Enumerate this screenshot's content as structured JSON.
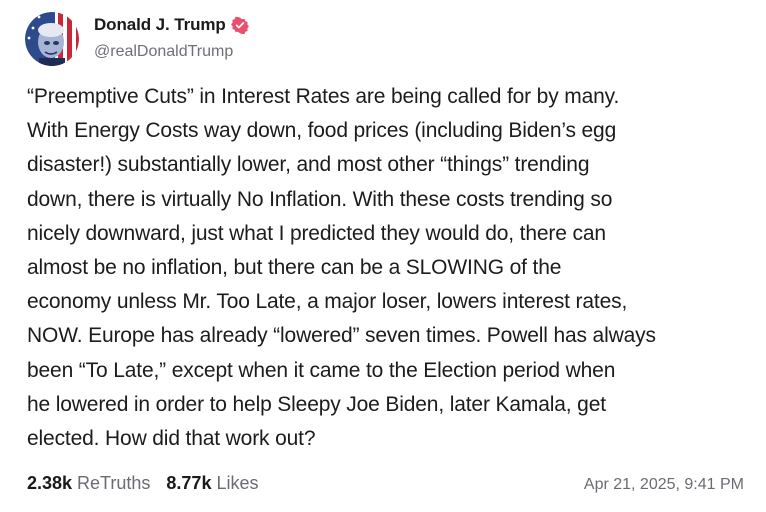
{
  "author": {
    "display_name": "Donald J. Trump",
    "handle": "@realDonaldTrump",
    "verified_icon": "verified-badge-icon",
    "badge_color": "#e8506b"
  },
  "post": {
    "text": "“Preemptive Cuts” in Interest Rates are being called for by many.\nWith Energy Costs way down, food prices (including Biden’s egg\ndisaster!) substantially lower, and most other “things” trending\ndown, there is virtually No Inflation. With these costs trending so\nnicely downward, just what I predicted they would do, there can\nalmost be no inflation, but there can be a SLOWING of the\neconomy unless Mr. Too Late, a major loser, lowers interest rates,\nNOW. Europe has already “lowered” seven times. Powell has always\nbeen “To Late,” except when it came to the Election period when\nhe lowered in order to help Sleepy Joe Biden, later Kamala, get\nelected. How did that work out?"
  },
  "stats": {
    "retruths_count": "2.38k",
    "retruths_label": "ReTruths",
    "likes_count": "8.77k",
    "likes_label": "Likes"
  },
  "timestamp": "Apr 21, 2025, 9:41 PM"
}
